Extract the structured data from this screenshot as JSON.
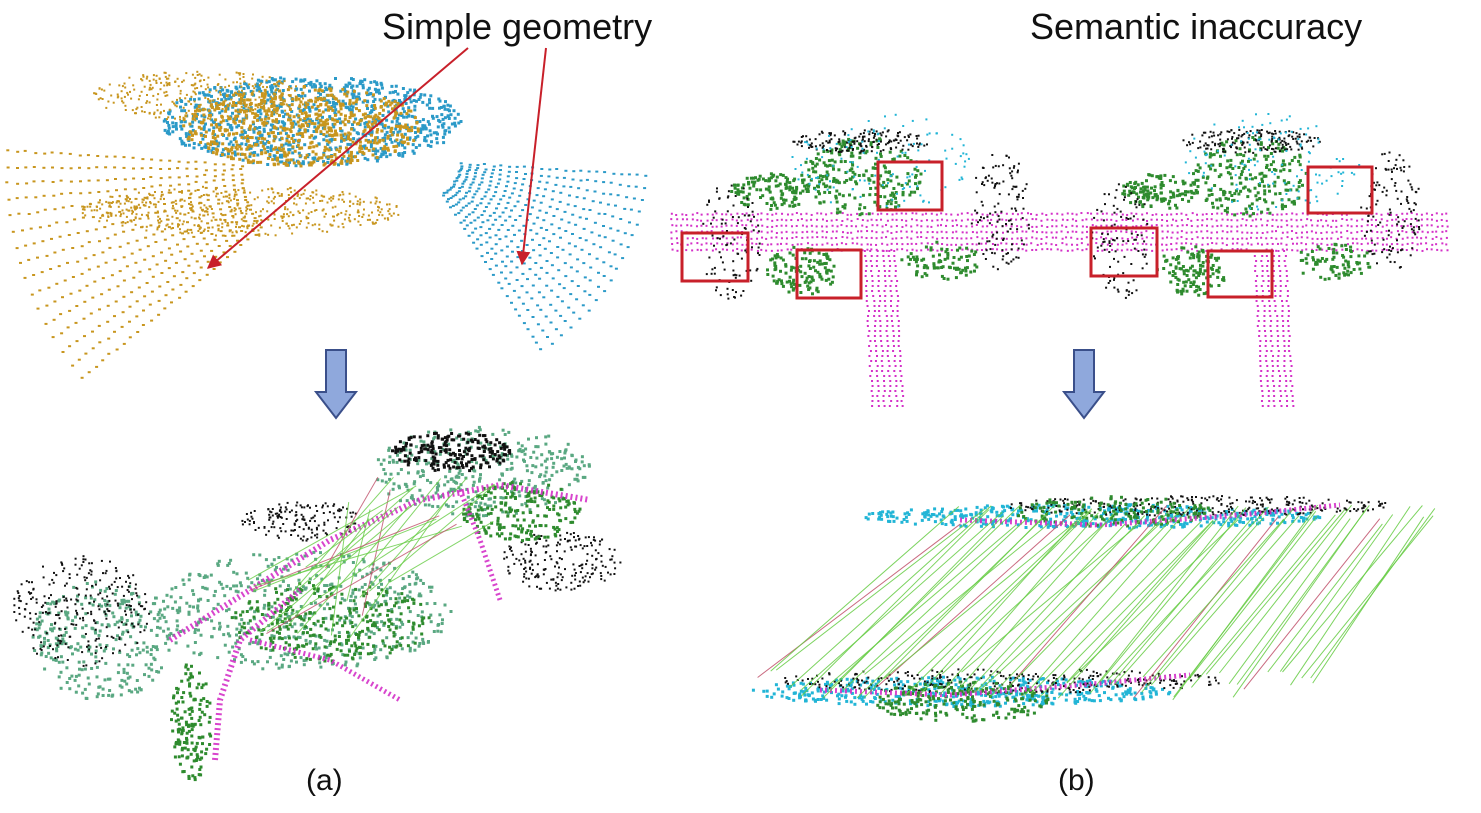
{
  "figure": {
    "annotation_left": "Simple geometry",
    "annotation_right": "Semantic inaccuracy",
    "label_a": "(a)",
    "label_b": "(b)"
  },
  "colors": {
    "scan_gold": "#c8961e",
    "scan_blue": "#2b9ac8",
    "road_magenta": "#d431c8",
    "vegetation_green": "#2e8b2e",
    "terrain_seagreen": "#5aa882",
    "building_black": "#111111",
    "car_cyan": "#22b5d6",
    "correspondence_line": "#66cc44",
    "annotation_red": "#c8202a",
    "arrow_fill": "#8fa8dc"
  }
}
